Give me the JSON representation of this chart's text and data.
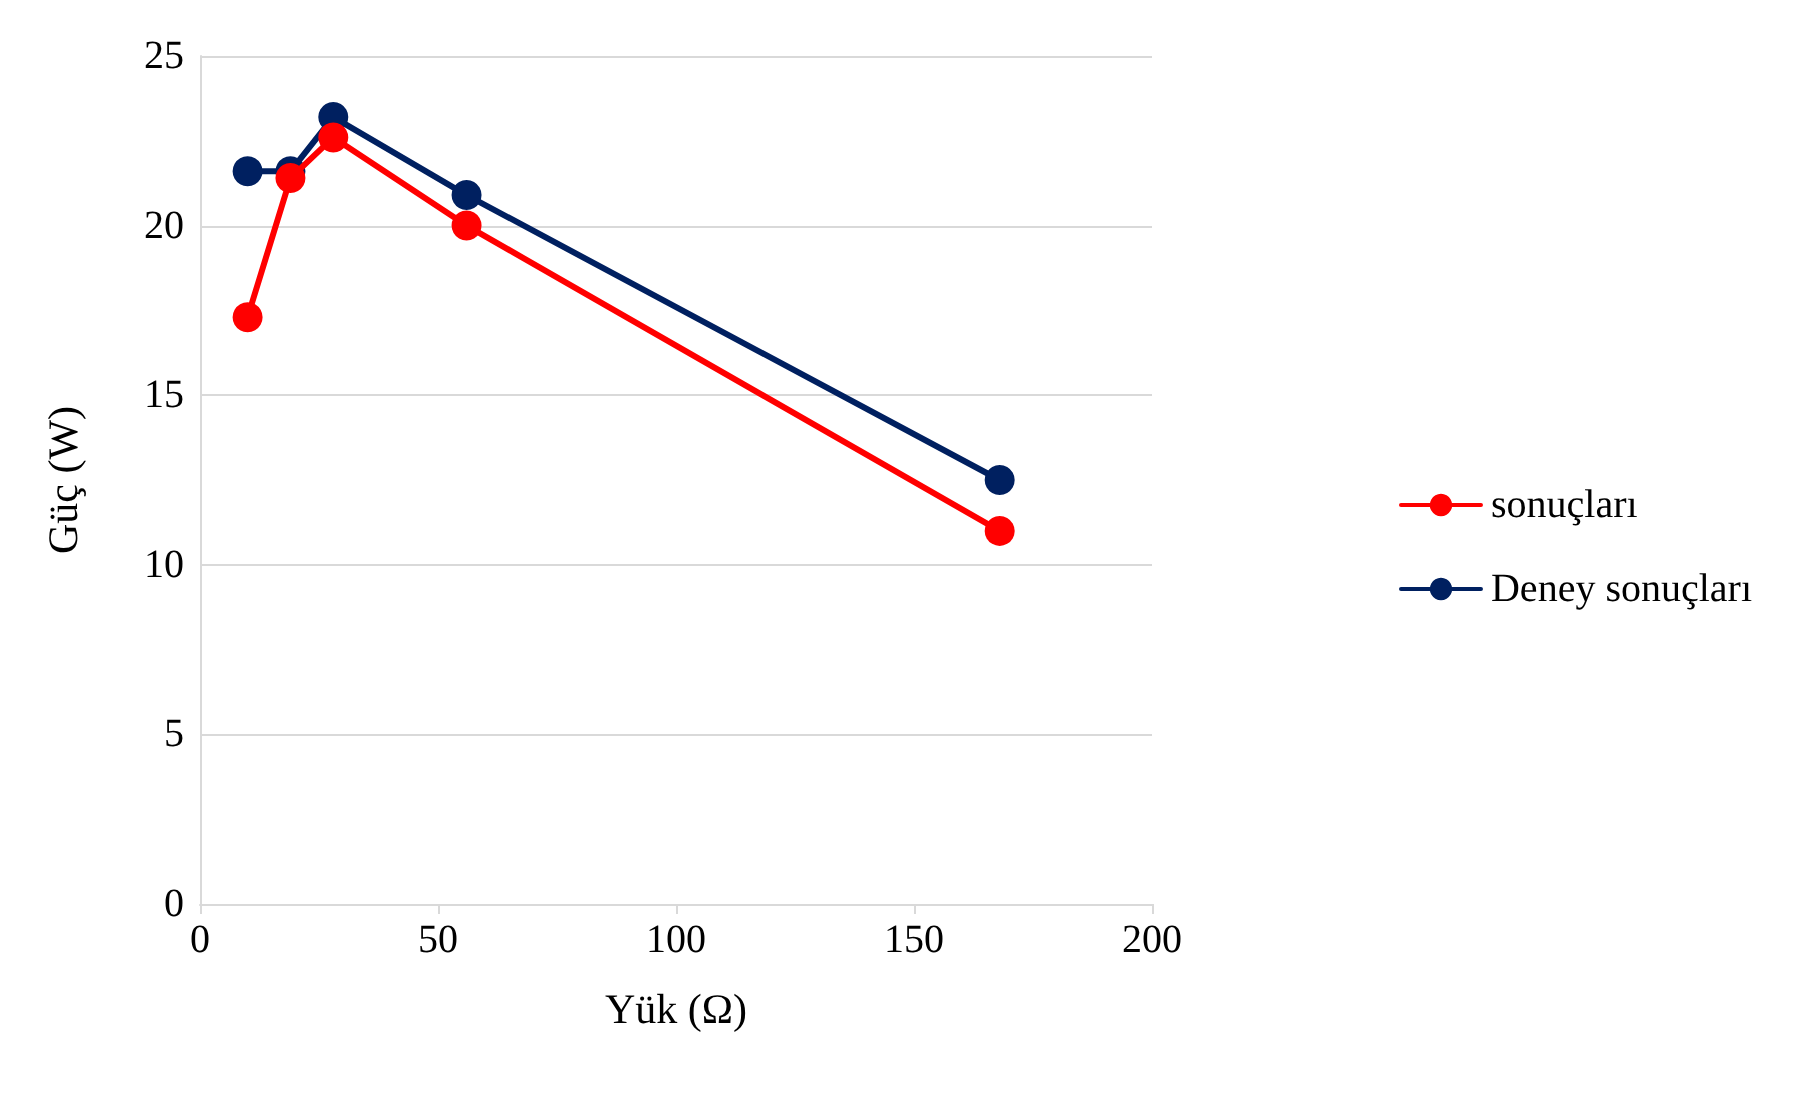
{
  "chart_data": {
    "type": "line",
    "xlabel": "Yük (Ω)",
    "ylabel": "Güç (W)",
    "x": [
      10,
      19,
      28,
      56,
      168
    ],
    "series": [
      {
        "name": "sonuçları",
        "color": "#ff0000",
        "values": [
          17.3,
          21.4,
          22.6,
          20.0,
          11.0
        ]
      },
      {
        "name": "Deney sonuçları",
        "color": "#002060",
        "values": [
          21.6,
          21.6,
          23.2,
          20.9,
          12.5
        ]
      }
    ],
    "xlim": [
      0,
      200
    ],
    "xticks": [
      0,
      50,
      100,
      150,
      200
    ],
    "ylim": [
      0,
      25
    ],
    "yticks": [
      0,
      5,
      10,
      15,
      20,
      25
    ],
    "grid": "y",
    "legend": "right",
    "marker": "circle",
    "line_style": "solid"
  }
}
